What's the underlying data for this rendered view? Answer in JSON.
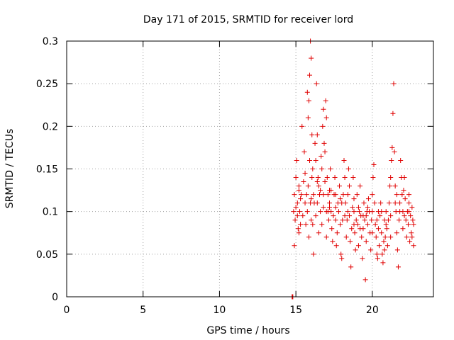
{
  "chart_data": {
    "type": "scatter",
    "title": "Day 171 of 2015, SRMTID for receiver lord",
    "xlabel": "GPS time / hours",
    "ylabel": "SRMTID / TECUs",
    "xlim": [
      0,
      24
    ],
    "ylim": [
      0,
      0.3
    ],
    "x_ticks": [
      0,
      5,
      10,
      15,
      20
    ],
    "x_tick_labels": [
      "0",
      "5",
      "10",
      "15",
      "20"
    ],
    "y_ticks": [
      0,
      0.05,
      0.1,
      0.15,
      0.2,
      0.25,
      0.3
    ],
    "y_tick_labels": [
      "0",
      "0.05",
      "0.1",
      "0.15",
      "0.2",
      "0.25",
      "0.3"
    ],
    "grid": true,
    "marker": "+",
    "color": "#e00000",
    "series": [
      {
        "name": "SRMTID",
        "points": [
          [
            14.75,
            0.0
          ],
          [
            14.78,
            0.0
          ],
          [
            14.8,
            0.0
          ],
          [
            14.85,
            0.1
          ],
          [
            14.9,
            0.12
          ],
          [
            14.95,
            0.09
          ],
          [
            15.0,
            0.14
          ],
          [
            15.05,
            0.16
          ],
          [
            15.1,
            0.11
          ],
          [
            15.15,
            0.08
          ],
          [
            15.2,
            0.13
          ],
          [
            15.25,
            0.1
          ],
          [
            15.3,
            0.085
          ],
          [
            15.35,
            0.12
          ],
          [
            15.4,
            0.2
          ],
          [
            14.9,
            0.06
          ],
          [
            15.0,
            0.105
          ],
          [
            15.1,
            0.095
          ],
          [
            15.2,
            0.075
          ],
          [
            15.3,
            0.115
          ],
          [
            15.45,
            0.095
          ],
          [
            15.5,
            0.135
          ],
          [
            15.55,
            0.17
          ],
          [
            15.6,
            0.11
          ],
          [
            15.65,
            0.085
          ],
          [
            15.7,
            0.12
          ],
          [
            15.75,
            0.24
          ],
          [
            15.8,
            0.21
          ],
          [
            15.85,
            0.23
          ],
          [
            15.9,
            0.26
          ],
          [
            15.95,
            0.3
          ],
          [
            16.0,
            0.28
          ],
          [
            16.05,
            0.19
          ],
          [
            16.1,
            0.15
          ],
          [
            16.15,
            0.12
          ],
          [
            15.75,
            0.1
          ],
          [
            15.8,
            0.13
          ],
          [
            15.85,
            0.07
          ],
          [
            15.9,
            0.16
          ],
          [
            15.95,
            0.11
          ],
          [
            16.0,
            0.09
          ],
          [
            16.05,
            0.14
          ],
          [
            16.1,
            0.085
          ],
          [
            16.15,
            0.05
          ],
          [
            16.2,
            0.11
          ],
          [
            16.25,
            0.18
          ],
          [
            16.3,
            0.16
          ],
          [
            16.35,
            0.25
          ],
          [
            16.4,
            0.19
          ],
          [
            16.45,
            0.14
          ],
          [
            16.5,
            0.13
          ],
          [
            16.55,
            0.12
          ],
          [
            16.6,
            0.1
          ],
          [
            16.65,
            0.165
          ],
          [
            16.7,
            0.15
          ],
          [
            16.75,
            0.2
          ],
          [
            16.8,
            0.22
          ],
          [
            16.85,
            0.18
          ],
          [
            16.9,
            0.17
          ],
          [
            16.95,
            0.23
          ],
          [
            17.0,
            0.21
          ],
          [
            17.05,
            0.14
          ],
          [
            17.1,
            0.12
          ],
          [
            17.15,
            0.09
          ],
          [
            17.2,
            0.11
          ],
          [
            16.3,
            0.095
          ],
          [
            16.4,
            0.11
          ],
          [
            16.5,
            0.075
          ],
          [
            16.6,
            0.125
          ],
          [
            16.7,
            0.085
          ],
          [
            16.8,
            0.105
          ],
          [
            16.9,
            0.135
          ],
          [
            17.0,
            0.07
          ],
          [
            17.1,
            0.1
          ],
          [
            17.2,
            0.125
          ],
          [
            17.25,
            0.15
          ],
          [
            17.3,
            0.1
          ],
          [
            17.35,
            0.08
          ],
          [
            17.4,
            0.065
          ],
          [
            17.45,
            0.095
          ],
          [
            17.5,
            0.12
          ],
          [
            17.55,
            0.14
          ],
          [
            17.6,
            0.09
          ],
          [
            17.65,
            0.06
          ],
          [
            17.7,
            0.075
          ],
          [
            17.75,
            0.11
          ],
          [
            17.8,
            0.1
          ],
          [
            17.85,
            0.13
          ],
          [
            17.9,
            0.085
          ],
          [
            17.95,
            0.05
          ],
          [
            18.0,
            0.045
          ],
          [
            18.05,
            0.09
          ],
          [
            18.1,
            0.12
          ],
          [
            18.15,
            0.16
          ],
          [
            18.2,
            0.14
          ],
          [
            18.25,
            0.11
          ],
          [
            18.3,
            0.07
          ],
          [
            18.35,
            0.09
          ],
          [
            18.4,
            0.12
          ],
          [
            18.45,
            0.15
          ],
          [
            18.5,
            0.095
          ],
          [
            18.55,
            0.065
          ],
          [
            18.6,
            0.035
          ],
          [
            18.65,
            0.08
          ],
          [
            18.7,
            0.105
          ],
          [
            18.75,
            0.14
          ],
          [
            18.8,
            0.1
          ],
          [
            18.85,
            0.075
          ],
          [
            18.9,
            0.055
          ],
          [
            18.95,
            0.09
          ],
          [
            19.0,
            0.12
          ],
          [
            19.05,
            0.085
          ],
          [
            19.1,
            0.06
          ],
          [
            19.15,
            0.1
          ],
          [
            19.2,
            0.13
          ],
          [
            19.25,
            0.095
          ],
          [
            19.3,
            0.07
          ],
          [
            19.35,
            0.045
          ],
          [
            19.4,
            0.08
          ],
          [
            19.45,
            0.11
          ],
          [
            19.5,
            0.09
          ],
          [
            19.55,
            0.02
          ],
          [
            19.6,
            0.065
          ],
          [
            19.65,
            0.1
          ],
          [
            19.7,
            0.085
          ],
          [
            19.75,
            0.115
          ],
          [
            19.8,
            0.1
          ],
          [
            19.85,
            0.075
          ],
          [
            19.9,
            0.055
          ],
          [
            19.95,
            0.09
          ],
          [
            20.0,
            0.12
          ],
          [
            20.05,
            0.14
          ],
          [
            20.1,
            0.155
          ],
          [
            20.15,
            0.11
          ],
          [
            20.2,
            0.085
          ],
          [
            20.25,
            0.07
          ],
          [
            20.3,
            0.05
          ],
          [
            20.35,
            0.045
          ],
          [
            20.4,
            0.08
          ],
          [
            20.45,
            0.06
          ],
          [
            20.5,
            0.095
          ],
          [
            20.55,
            0.11
          ],
          [
            20.6,
            0.075
          ],
          [
            20.65,
            0.05
          ],
          [
            20.7,
            0.04
          ],
          [
            20.75,
            0.065
          ],
          [
            20.8,
            0.09
          ],
          [
            20.85,
            0.07
          ],
          [
            20.9,
            0.1
          ],
          [
            20.95,
            0.08
          ],
          [
            21.0,
            0.06
          ],
          [
            21.05,
            0.09
          ],
          [
            21.1,
            0.11
          ],
          [
            21.15,
            0.13
          ],
          [
            21.2,
            0.14
          ],
          [
            21.25,
            0.16
          ],
          [
            21.3,
            0.175
          ],
          [
            21.35,
            0.215
          ],
          [
            21.4,
            0.25
          ],
          [
            21.45,
            0.17
          ],
          [
            21.5,
            0.13
          ],
          [
            21.55,
            0.1
          ],
          [
            21.6,
            0.075
          ],
          [
            21.65,
            0.055
          ],
          [
            21.7,
            0.035
          ],
          [
            21.75,
            0.09
          ],
          [
            21.8,
            0.11
          ],
          [
            21.85,
            0.16
          ],
          [
            21.9,
            0.14
          ],
          [
            21.95,
            0.12
          ],
          [
            22.0,
            0.1
          ],
          [
            22.05,
            0.125
          ],
          [
            22.1,
            0.14
          ],
          [
            22.15,
            0.115
          ],
          [
            22.2,
            0.09
          ],
          [
            22.25,
            0.07
          ],
          [
            22.3,
            0.1
          ],
          [
            22.35,
            0.085
          ],
          [
            22.4,
            0.12
          ],
          [
            22.45,
            0.065
          ],
          [
            22.5,
            0.095
          ],
          [
            22.55,
            0.075
          ],
          [
            22.6,
            0.105
          ],
          [
            22.65,
            0.09
          ],
          [
            22.7,
            0.06
          ],
          [
            17.0,
            0.1
          ],
          [
            17.3,
            0.125
          ],
          [
            17.6,
            0.105
          ],
          [
            17.9,
            0.115
          ],
          [
            18.2,
            0.095
          ],
          [
            18.5,
            0.13
          ],
          [
            18.8,
            0.115
          ],
          [
            19.1,
            0.105
          ],
          [
            19.4,
            0.095
          ],
          [
            19.7,
            0.105
          ],
          [
            20.0,
            0.1
          ],
          [
            20.3,
            0.09
          ],
          [
            20.6,
            0.1
          ],
          [
            20.9,
            0.085
          ],
          [
            21.2,
            0.095
          ],
          [
            21.5,
            0.11
          ],
          [
            21.8,
            0.1
          ],
          [
            22.1,
            0.095
          ],
          [
            22.4,
            0.1
          ],
          [
            22.7,
            0.085
          ],
          [
            15.2,
            0.125
          ],
          [
            15.6,
            0.145
          ],
          [
            16.0,
            0.115
          ],
          [
            16.4,
            0.135
          ],
          [
            16.8,
            0.12
          ],
          [
            17.2,
            0.105
          ],
          [
            17.6,
            0.12
          ],
          [
            18.0,
            0.11
          ],
          [
            18.4,
            0.1
          ],
          [
            18.8,
            0.085
          ],
          [
            19.2,
            0.08
          ],
          [
            19.6,
            0.095
          ],
          [
            20.0,
            0.075
          ],
          [
            20.4,
            0.1
          ],
          [
            20.8,
            0.055
          ],
          [
            21.2,
            0.07
          ],
          [
            21.6,
            0.12
          ],
          [
            22.0,
            0.08
          ],
          [
            22.4,
            0.11
          ],
          [
            22.6,
            0.07
          ]
        ]
      }
    ]
  }
}
